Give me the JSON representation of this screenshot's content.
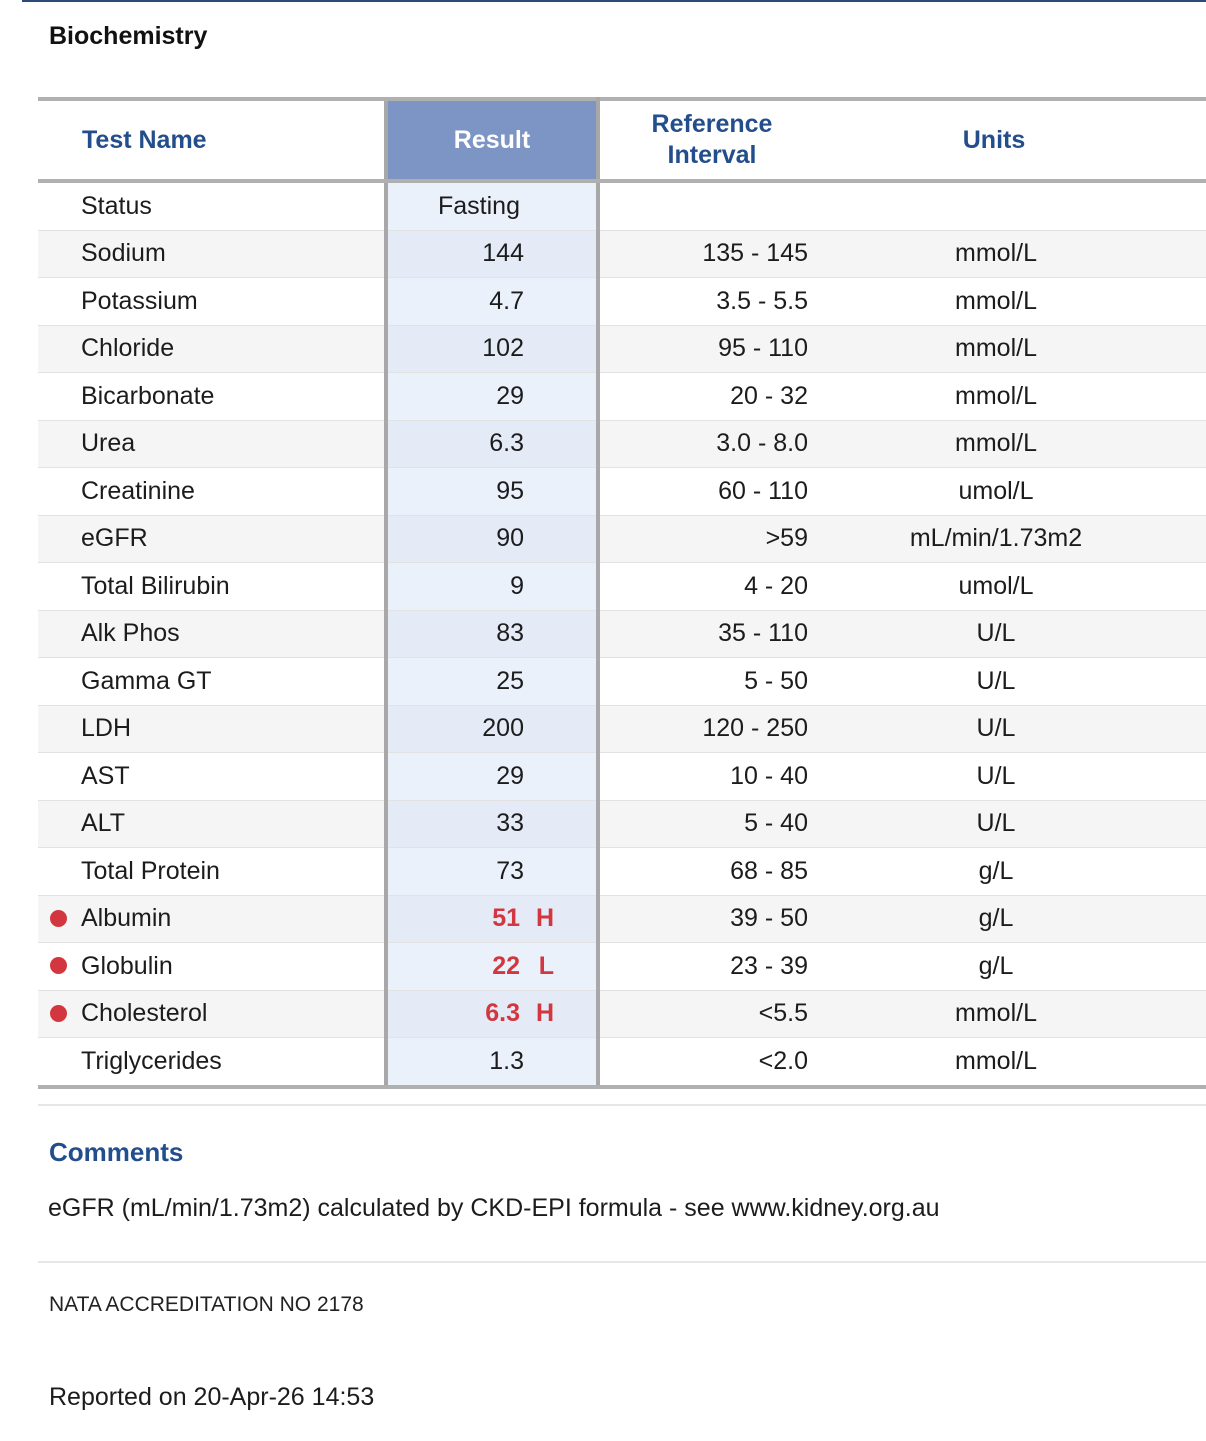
{
  "report": {
    "section_title": "Biochemistry",
    "columns": {
      "test_name": "Test Name",
      "result": "Result",
      "reference_interval_line1": "Reference",
      "reference_interval_line2": "Interval",
      "units": "Units"
    },
    "rows": [
      {
        "name": "Status",
        "result": "Fasting",
        "flag": "",
        "reference": "",
        "units": ""
      },
      {
        "name": "Sodium",
        "result": "144",
        "flag": "",
        "reference": "135 - 145",
        "units": "mmol/L"
      },
      {
        "name": "Potassium",
        "result": "4.7",
        "flag": "",
        "reference": "3.5 - 5.5",
        "units": "mmol/L"
      },
      {
        "name": "Chloride",
        "result": "102",
        "flag": "",
        "reference": "95 - 110",
        "units": "mmol/L"
      },
      {
        "name": "Bicarbonate",
        "result": "29",
        "flag": "",
        "reference": "20 - 32",
        "units": "mmol/L"
      },
      {
        "name": "Urea",
        "result": "6.3",
        "flag": "",
        "reference": "3.0 - 8.0",
        "units": "mmol/L"
      },
      {
        "name": "Creatinine",
        "result": "95",
        "flag": "",
        "reference": "60 - 110",
        "units": "umol/L"
      },
      {
        "name": "eGFR",
        "result": "90",
        "flag": "",
        "reference": ">59",
        "units": "mL/min/1.73m2"
      },
      {
        "name": "Total Bilirubin",
        "result": "9",
        "flag": "",
        "reference": "4 - 20",
        "units": "umol/L"
      },
      {
        "name": "Alk Phos",
        "result": "83",
        "flag": "",
        "reference": "35 - 110",
        "units": "U/L"
      },
      {
        "name": "Gamma GT",
        "result": "25",
        "flag": "",
        "reference": "5 - 50",
        "units": "U/L"
      },
      {
        "name": "LDH",
        "result": "200",
        "flag": "",
        "reference": "120 - 250",
        "units": "U/L"
      },
      {
        "name": "AST",
        "result": "29",
        "flag": "",
        "reference": "10 - 40",
        "units": "U/L"
      },
      {
        "name": "ALT",
        "result": "33",
        "flag": "",
        "reference": "5 - 40",
        "units": "U/L"
      },
      {
        "name": "Total Protein",
        "result": "73",
        "flag": "",
        "reference": "68 - 85",
        "units": "g/L"
      },
      {
        "name": "Albumin",
        "result": "51",
        "flag": "H",
        "reference": "39 - 50",
        "units": "g/L"
      },
      {
        "name": "Globulin",
        "result": "22",
        "flag": "L",
        "reference": "23 - 39",
        "units": "g/L"
      },
      {
        "name": "Cholesterol",
        "result": "6.3",
        "flag": "H",
        "reference": "<5.5",
        "units": "mmol/L"
      },
      {
        "name": "Triglycerides",
        "result": "1.3",
        "flag": "",
        "reference": "<2.0",
        "units": "mmol/L"
      }
    ],
    "comments_title": "Comments",
    "comment_text": "eGFR (mL/min/1.73m2) calculated by CKD-EPI formula - see www.kidney.org.au",
    "accreditation": "NATA ACCREDITATION NO 2178",
    "reported": "Reported on 20-Apr-26 14:53"
  },
  "colors": {
    "header_text": "#234e8c",
    "result_header_bg": "#7d95c4",
    "result_column_bg": "#ebf1fb",
    "abnormal": "#d2363f"
  },
  "icons": {
    "abnormal_flag": "red-dot-icon"
  }
}
